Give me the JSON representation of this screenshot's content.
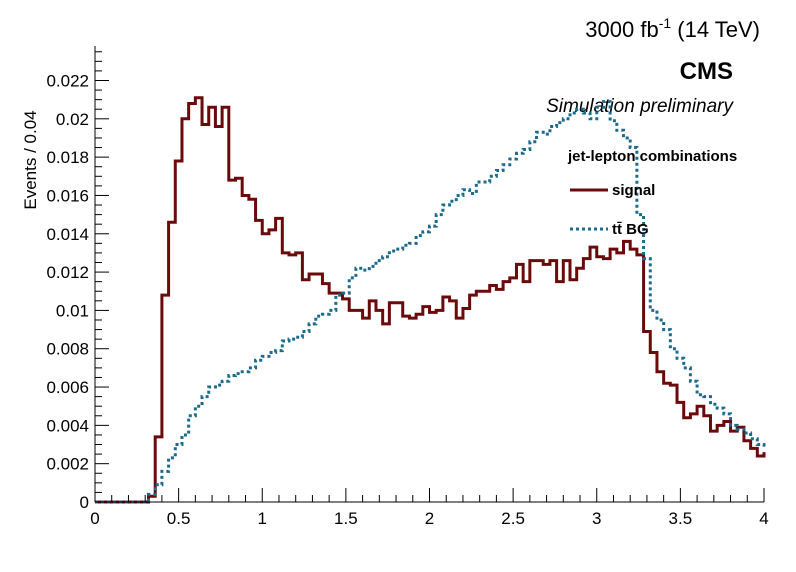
{
  "chart_data": {
    "type": "line",
    "style": "step-histogram",
    "header_right": "3000 fb",
    "header_superscript": "-1",
    "header_suffix": " (14 TeV)",
    "experiment": "CMS",
    "subtitle": "Simulation preliminary",
    "ylabel": "Events / 0.04",
    "xlabel": "",
    "xlim": [
      0,
      4
    ],
    "ylim": [
      0,
      0.0238
    ],
    "x_ticks": [
      "0",
      "0.5",
      "1",
      "1.5",
      "2",
      "2.5",
      "3",
      "3.5",
      "4"
    ],
    "x_tick_values": [
      0,
      0.5,
      1,
      1.5,
      2,
      2.5,
      3,
      3.5,
      4
    ],
    "y_ticks": [
      "0",
      "0.002",
      "0.004",
      "0.006",
      "0.008",
      "0.01",
      "0.012",
      "0.014",
      "0.016",
      "0.018",
      "0.02",
      "0.022"
    ],
    "y_tick_values": [
      0,
      0.002,
      0.004,
      0.006,
      0.008,
      0.01,
      0.012,
      0.014,
      0.016,
      0.018,
      0.02,
      0.022
    ],
    "grid": false,
    "legend_header": "jet-lepton combinations",
    "legend_placement": "top-right",
    "bin_width": 0.04,
    "series": [
      {
        "name": "signal",
        "color": "#6b0a0a",
        "dash": "solid",
        "x_start": 0,
        "values": [
          0,
          0,
          0,
          0,
          0,
          0,
          0,
          0,
          0.0003,
          0.0034,
          0.0108,
          0.0146,
          0.0178,
          0.02,
          0.0208,
          0.0211,
          0.0197,
          0.0206,
          0.0196,
          0.0206,
          0.0168,
          0.0169,
          0.016,
          0.0158,
          0.0147,
          0.014,
          0.0142,
          0.0148,
          0.013,
          0.0129,
          0.013,
          0.0116,
          0.0119,
          0.0119,
          0.0114,
          0.0109,
          0.0109,
          0.0106,
          0.01,
          0.01,
          0.0096,
          0.0105,
          0.01,
          0.0093,
          0.0104,
          0.0104,
          0.0097,
          0.0096,
          0.0098,
          0.0102,
          0.0099,
          0.01,
          0.0107,
          0.0105,
          0.0096,
          0.0101,
          0.0108,
          0.011,
          0.011,
          0.0113,
          0.0111,
          0.0115,
          0.0117,
          0.0124,
          0.0115,
          0.0126,
          0.0126,
          0.0124,
          0.0126,
          0.0115,
          0.0126,
          0.0116,
          0.0122,
          0.0127,
          0.0133,
          0.0128,
          0.0127,
          0.0132,
          0.013,
          0.0136,
          0.0132,
          0.0129,
          0.0089,
          0.0078,
          0.0068,
          0.0062,
          0.0061,
          0.0052,
          0.0044,
          0.0046,
          0.005,
          0.0045,
          0.0037,
          0.004,
          0.0042,
          0.0037,
          0.0039,
          0.0032,
          0.0028,
          0.0024,
          0.0026
        ]
      },
      {
        "name": "tt̄ BG",
        "color": "#1b6b8c",
        "dash": "dotted",
        "x_start": 0,
        "values": [
          0,
          0,
          0,
          0,
          0,
          0,
          0,
          0,
          0.0004,
          0.0009,
          0.0016,
          0.0023,
          0.003,
          0.0035,
          0.0045,
          0.005,
          0.0055,
          0.006,
          0.0061,
          0.0063,
          0.0066,
          0.0067,
          0.0068,
          0.007,
          0.0074,
          0.0076,
          0.0078,
          0.0079,
          0.0084,
          0.0085,
          0.0086,
          0.0089,
          0.0093,
          0.0097,
          0.0098,
          0.01,
          0.0108,
          0.0109,
          0.0117,
          0.0122,
          0.0121,
          0.0123,
          0.0126,
          0.0128,
          0.0131,
          0.0132,
          0.0134,
          0.0135,
          0.0139,
          0.0141,
          0.0144,
          0.015,
          0.0155,
          0.0157,
          0.016,
          0.0163,
          0.0161,
          0.0167,
          0.0167,
          0.017,
          0.0173,
          0.0176,
          0.0179,
          0.0182,
          0.0184,
          0.0188,
          0.0193,
          0.0192,
          0.0196,
          0.0198,
          0.02,
          0.0203,
          0.0205,
          0.0203,
          0.02,
          0.0206,
          0.0209,
          0.0199,
          0.0194,
          0.019,
          0.0185,
          0.015,
          0.0127,
          0.01,
          0.0095,
          0.009,
          0.008,
          0.0075,
          0.007,
          0.0063,
          0.0056,
          0.0055,
          0.0051,
          0.0049,
          0.0046,
          0.004,
          0.0038,
          0.0036,
          0.0033,
          0.003,
          0.0028
        ]
      }
    ]
  }
}
